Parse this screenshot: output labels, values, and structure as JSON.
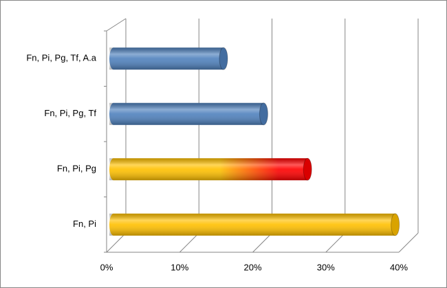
{
  "chart_data": {
    "type": "bar3d-horizontal",
    "categories": [
      "Fn, Pi, Pg, Tf, A.a",
      "Fn, Pi, Pg, Tf",
      "Fn, Pi, Pg",
      "Fn, Pi"
    ],
    "values": [
      0.16,
      0.215,
      0.275,
      0.395
    ],
    "colors": [
      [
        "#4f81bd"
      ],
      [
        "#4f81bd"
      ],
      [
        "#ffc000",
        "#ff0000"
      ],
      [
        "#ffc000"
      ]
    ],
    "xlim": [
      0,
      0.4
    ],
    "xticks": [
      {
        "value": 0,
        "label": "0%"
      },
      {
        "value": 0.1,
        "label": "10%"
      },
      {
        "value": 0.2,
        "label": "20%"
      },
      {
        "value": 0.3,
        "label": "30%"
      },
      {
        "value": 0.4,
        "label": "40%"
      }
    ],
    "grid": true
  }
}
